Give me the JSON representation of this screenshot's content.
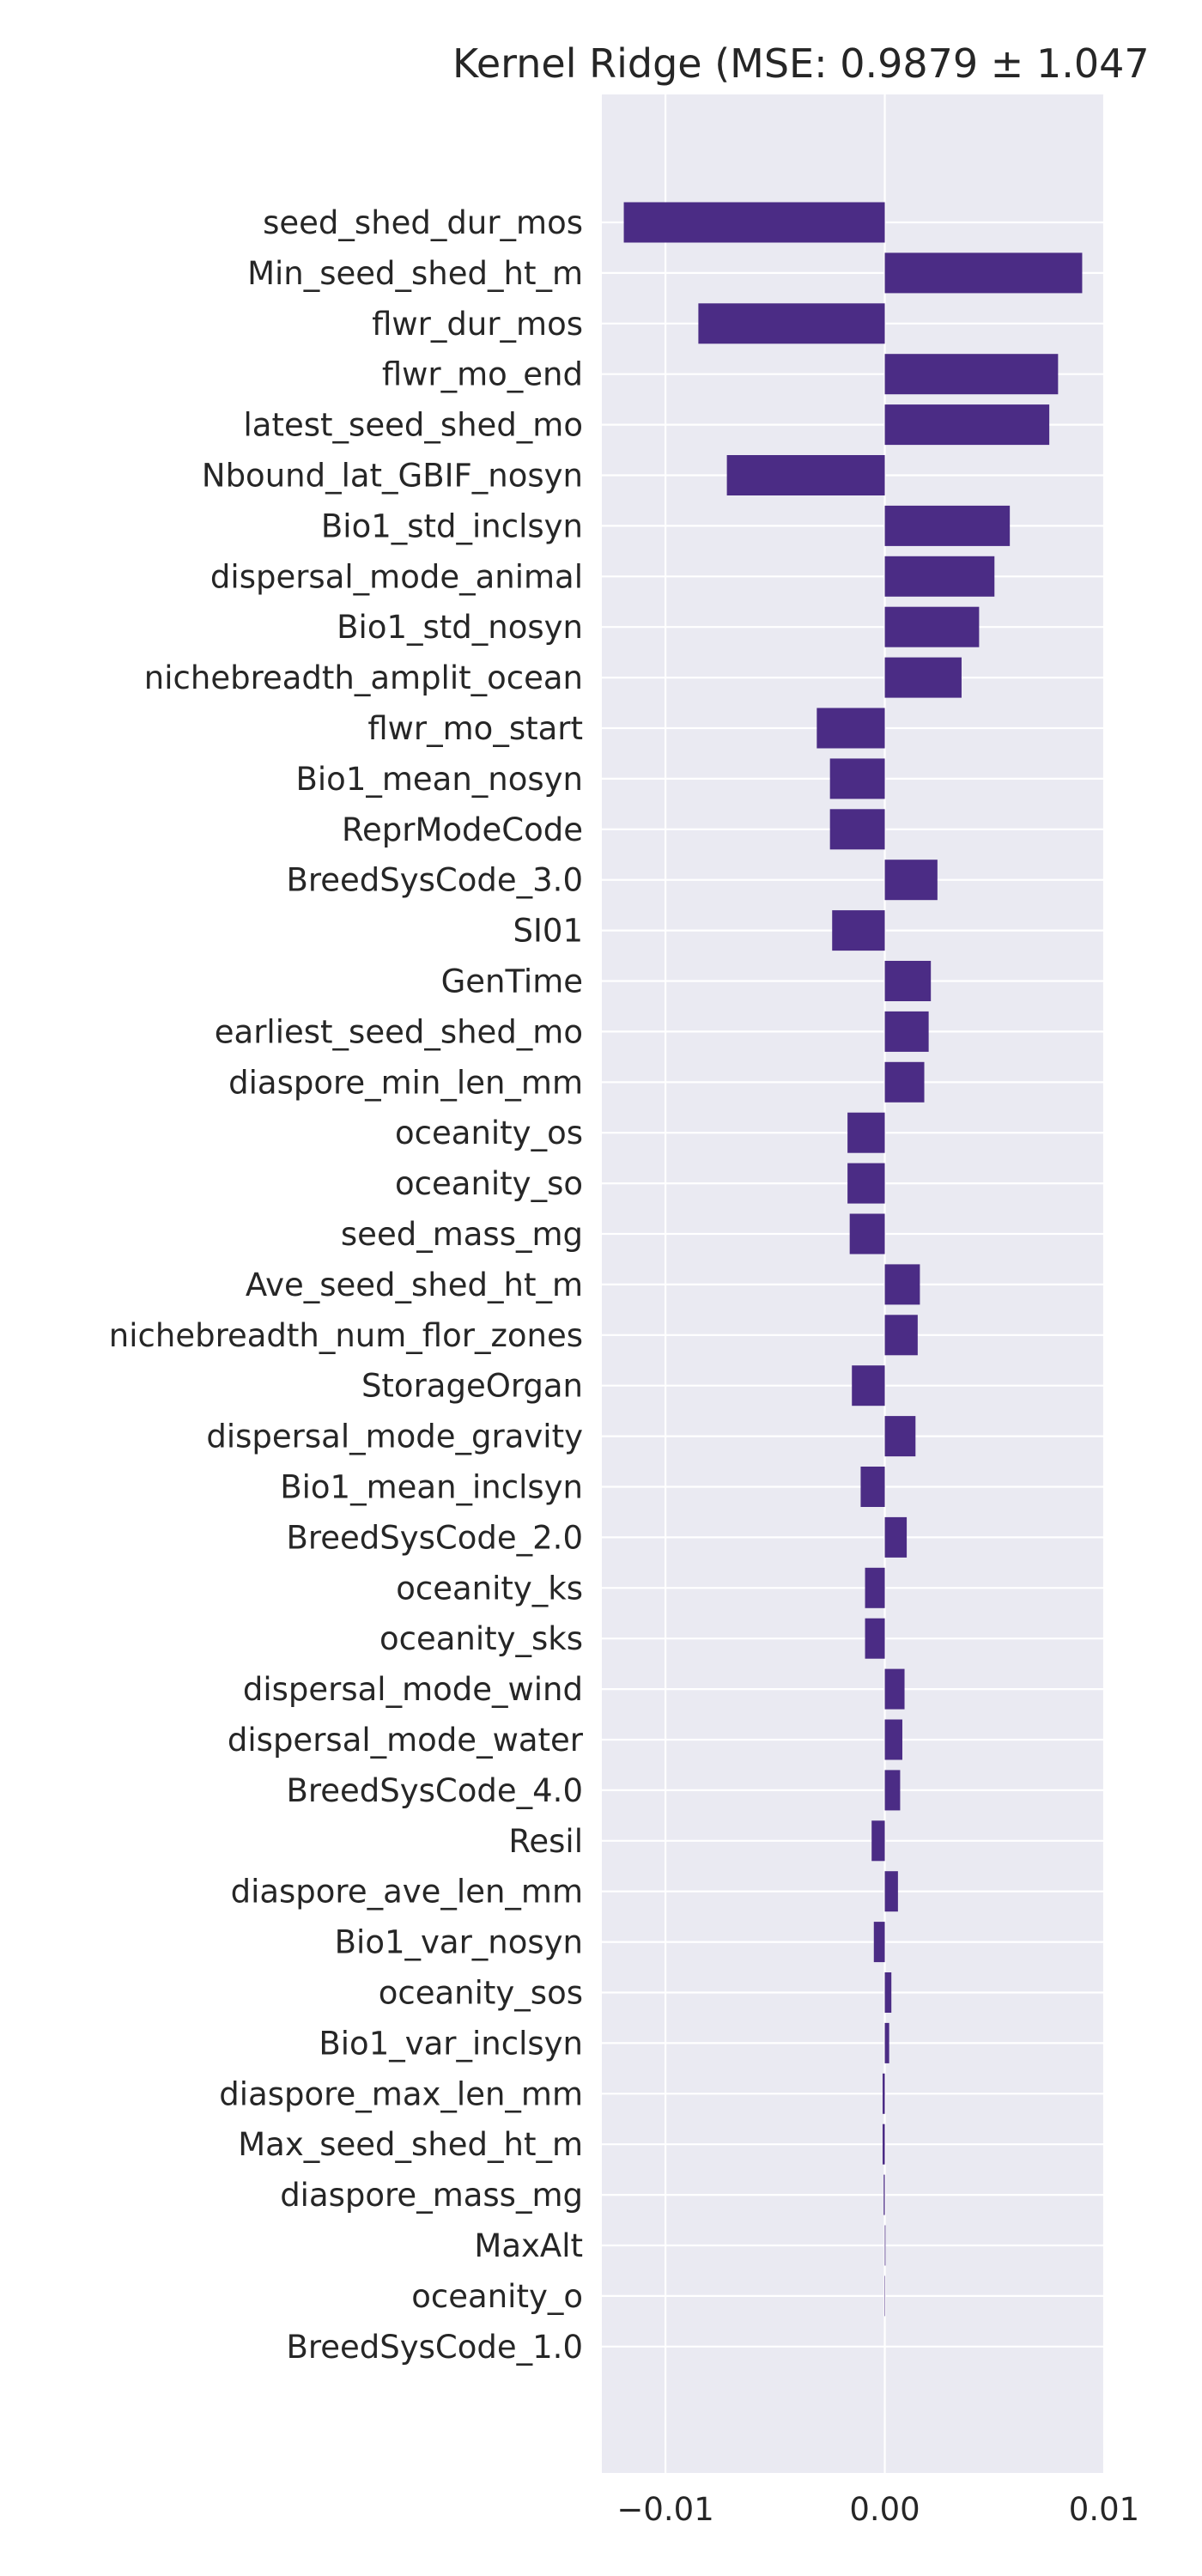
{
  "chart_data": {
    "type": "bar",
    "orientation": "horizontal",
    "title": "Kernel Ridge (MSE: 0.9879 ± 1.047",
    "xlabel": "",
    "ylabel": "",
    "xlim": [
      -0.0129,
      0.01
    ],
    "xticks": [
      -0.01,
      0.0,
      0.01
    ],
    "xtick_labels": [
      "−0.01",
      "0.00",
      "0.01"
    ],
    "grid": true,
    "bar_color": "#4b2c85",
    "background_color": "#eaeaf2",
    "grid_color": "#ffffff",
    "categories": [
      "seed_shed_dur_mos",
      "Min_seed_shed_ht_m",
      "flwr_dur_mos",
      "flwr_mo_end",
      "latest_seed_shed_mo",
      "Nbound_lat_GBIF_nosyn",
      "Bio1_std_inclsyn",
      "dispersal_mode_animal",
      "Bio1_std_nosyn",
      "nichebreadth_amplit_ocean",
      "flwr_mo_start",
      "Bio1_mean_nosyn",
      "ReprModeCode",
      "BreedSysCode_3.0",
      "SI01",
      "GenTime",
      "earliest_seed_shed_mo",
      "diaspore_min_len_mm",
      "oceanity_os",
      "oceanity_so",
      "seed_mass_mg",
      "Ave_seed_shed_ht_m",
      "nichebreadth_num_flor_zones",
      "StorageOrgan",
      "dispersal_mode_gravity",
      "Bio1_mean_inclsyn",
      "BreedSysCode_2.0",
      "oceanity_ks",
      "oceanity_sks",
      "dispersal_mode_wind",
      "dispersal_mode_water",
      "BreedSysCode_4.0",
      "Resil",
      "diaspore_ave_len_mm",
      "Bio1_var_nosyn",
      "oceanity_sos",
      "Bio1_var_inclsyn",
      "diaspore_max_len_mm",
      "Max_seed_shed_ht_m",
      "diaspore_mass_mg",
      "MaxAlt",
      "oceanity_o",
      "BreedSysCode_1.0"
    ],
    "values": [
      -0.0119,
      0.009,
      -0.0085,
      0.0079,
      0.0075,
      -0.0072,
      0.0057,
      0.005,
      0.0043,
      0.0035,
      -0.0031,
      -0.0025,
      -0.0025,
      0.0024,
      -0.0024,
      0.0021,
      0.002,
      0.0018,
      -0.0017,
      -0.0017,
      -0.0016,
      0.0016,
      0.0015,
      -0.0015,
      0.0014,
      -0.0011,
      0.001,
      -0.0009,
      -0.0009,
      0.0009,
      0.0008,
      0.0007,
      -0.0006,
      0.0006,
      -0.0005,
      0.0003,
      0.0002,
      -0.0001,
      -0.0001,
      -5e-05,
      3e-05,
      -2e-05,
      0.0
    ]
  }
}
